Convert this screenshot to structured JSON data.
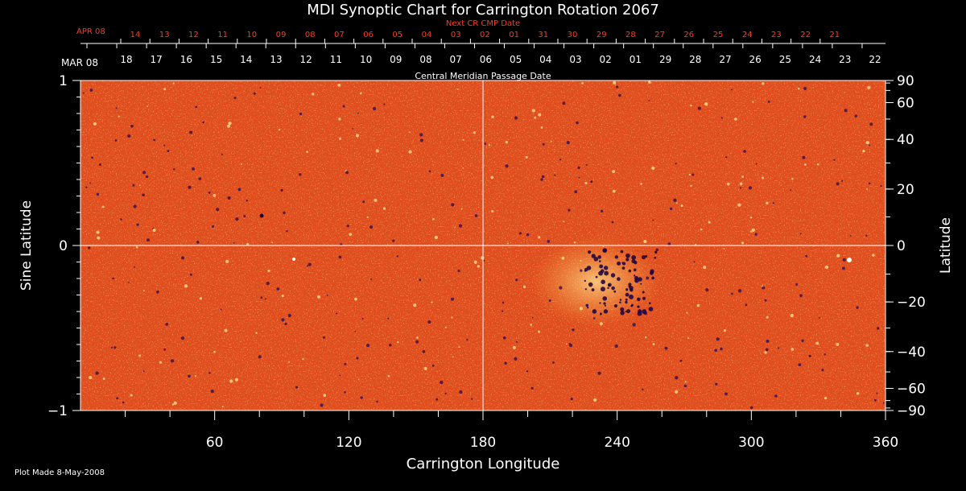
{
  "chart_data": {
    "type": "heatmap",
    "title": "MDI Synoptic Chart for Carrington Rotation 2067",
    "xlabel": "Carrington Longitude",
    "ylabel_left": "Sine Latitude",
    "ylabel_right": "Latitude",
    "xlim": [
      0,
      360
    ],
    "ylim": [
      -1,
      1
    ],
    "x_ticks": [
      60,
      120,
      180,
      240,
      300,
      360
    ],
    "y_ticks_left": [
      -1,
      0,
      1
    ],
    "y_ticks_right": [
      90,
      60,
      40,
      20,
      0,
      -20,
      -40,
      -60,
      -90
    ],
    "top_axis_label": "Central Meridian Passage Date",
    "top_month_label": "MAR 08",
    "top_dates": [
      "18",
      "17",
      "16",
      "15",
      "14",
      "13",
      "12",
      "11",
      "10",
      "09",
      "08",
      "07",
      "06",
      "05",
      "04",
      "03",
      "02",
      "01",
      "29",
      "28",
      "27",
      "26",
      "25",
      "24",
      "23",
      "22"
    ],
    "next_axis_label": "Next CR CMP Date",
    "next_month_label": "APR 08",
    "next_dates": [
      "14",
      "13",
      "12",
      "11",
      "10",
      "09",
      "08",
      "07",
      "06",
      "05",
      "04",
      "03",
      "02",
      "01",
      "31",
      "30",
      "29",
      "28",
      "27",
      "26",
      "25",
      "24",
      "23",
      "22",
      "21"
    ],
    "colors": {
      "background": "#e8501e",
      "positive": "#ffffc0",
      "negative": "#1a0040",
      "next_text": "#ff3b1f"
    }
  },
  "footer": {
    "plot_made": "Plot Made  8-May-2008"
  }
}
